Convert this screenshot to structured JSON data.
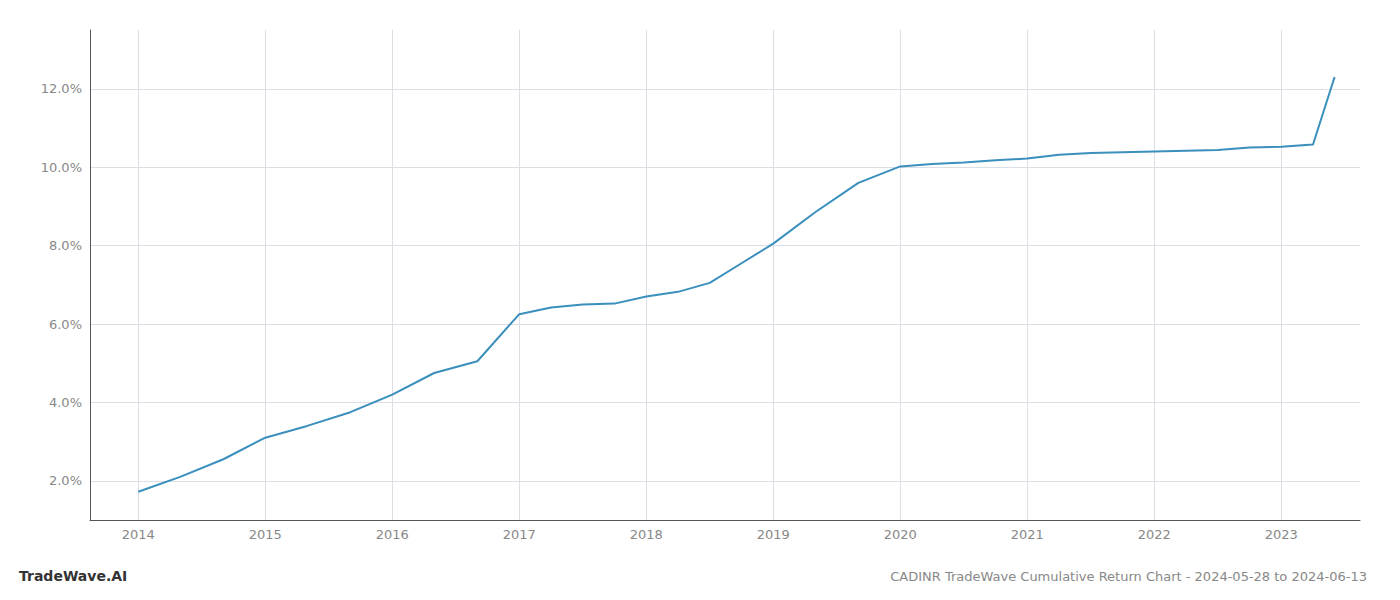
{
  "chart_data": {
    "type": "line",
    "title": "CADINR TradeWave Cumulative Return Chart - 2024-05-28 to 2024-06-13",
    "annotations": [
      "TradeWave.AI"
    ],
    "x": [
      2014.0,
      2014.33,
      2014.67,
      2015.0,
      2015.33,
      2015.67,
      2016.0,
      2016.33,
      2016.67,
      2017.0,
      2017.25,
      2017.5,
      2017.75,
      2018.0,
      2018.25,
      2018.5,
      2018.75,
      2019.0,
      2019.33,
      2019.67,
      2020.0,
      2020.25,
      2020.5,
      2020.75,
      2021.0,
      2021.25,
      2021.5,
      2021.75,
      2022.0,
      2022.25,
      2022.5,
      2022.75,
      2023.0,
      2023.25,
      2023.42
    ],
    "values": [
      1.72,
      2.1,
      2.55,
      3.1,
      3.4,
      3.75,
      4.2,
      4.75,
      5.05,
      6.25,
      6.42,
      6.5,
      6.52,
      6.7,
      6.82,
      7.05,
      7.55,
      8.05,
      8.85,
      9.6,
      10.02,
      10.08,
      10.12,
      10.18,
      10.22,
      10.32,
      10.36,
      10.38,
      10.4,
      10.42,
      10.44,
      10.5,
      10.52,
      10.58,
      12.3
    ],
    "color": "#3a8fbd",
    "xlim": [
      2013.62,
      2023.62
    ],
    "ylim": [
      1.0,
      13.5
    ],
    "xticks": [
      2014,
      2015,
      2016,
      2017,
      2018,
      2019,
      2020,
      2021,
      2022,
      2023
    ],
    "yticks": [
      {
        "value": 2,
        "label": "2.0%"
      },
      {
        "value": 4,
        "label": "4.0%"
      },
      {
        "value": 6,
        "label": "6.0%"
      },
      {
        "value": 8,
        "label": "8.0%"
      },
      {
        "value": 10,
        "label": "10.0%"
      },
      {
        "value": 12,
        "label": "12.0%"
      }
    ],
    "grid": true
  }
}
